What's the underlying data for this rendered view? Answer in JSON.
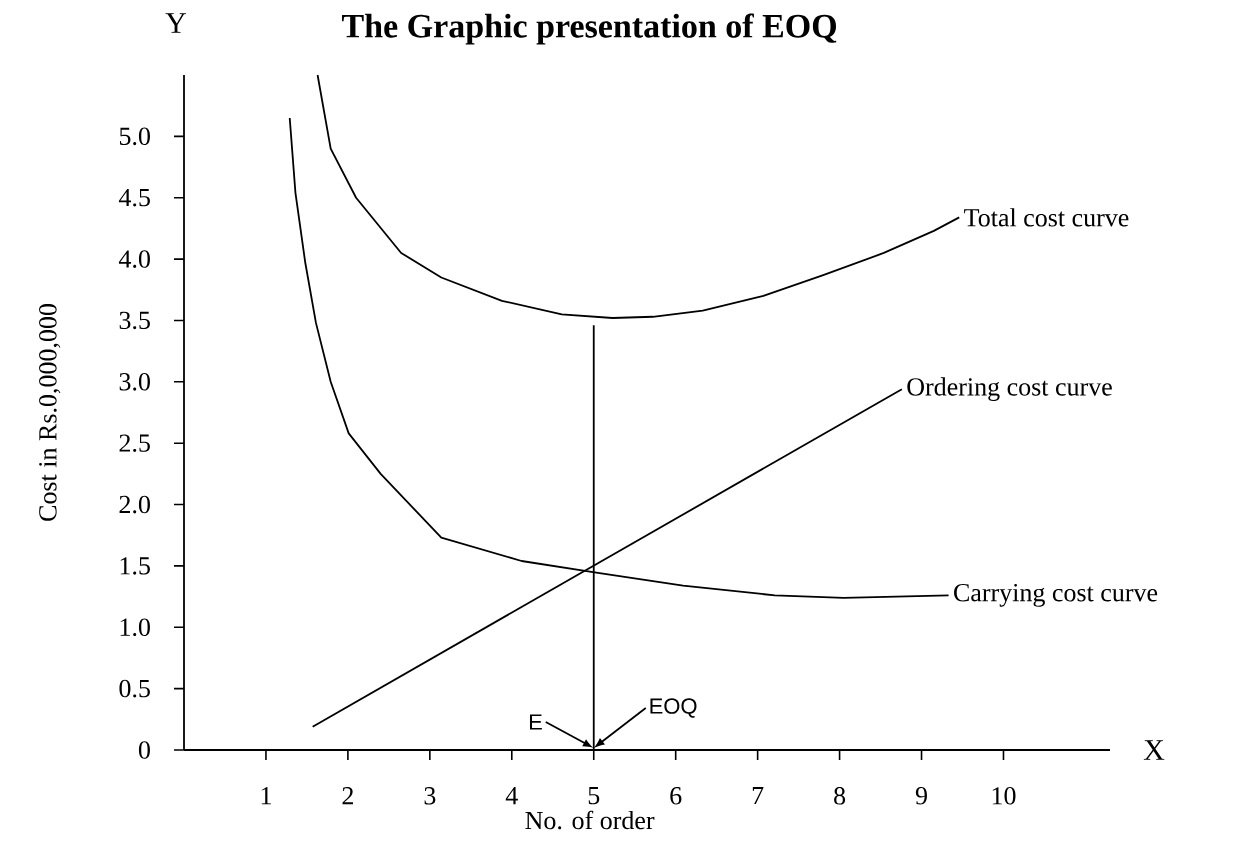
{
  "chart_data": {
    "type": "line",
    "title": "The Graphic presentation of EOQ",
    "xlabel": "No. of order",
    "ylabel": "Cost in Rs.0,000,000",
    "xlim": [
      0,
      11.3
    ],
    "ylim": [
      0,
      5.5
    ],
    "xticks": [
      1,
      2,
      3,
      4,
      5,
      6,
      7,
      8,
      9,
      10
    ],
    "yticks": [
      0,
      0.5,
      {
        "value": 1,
        "label": "1.0"
      },
      1.5,
      {
        "value": 2,
        "label": "2.0"
      },
      2.5,
      {
        "value": 3,
        "label": "3.0"
      },
      3.5,
      {
        "value": 4,
        "label": "4.0"
      },
      4.5,
      {
        "value": 5,
        "label": "5.0"
      }
    ],
    "series": [
      {
        "name": "Total cost curve",
        "color": "#000000",
        "x": [
          1.63,
          1.79,
          2.1,
          2.65,
          3.14,
          3.88,
          4.61,
          5.23,
          5.72,
          6.33,
          7.07,
          7.8,
          8.54,
          9.15,
          9.46
        ],
        "values": [
          5.5,
          4.9,
          4.5,
          4.05,
          3.85,
          3.66,
          3.55,
          3.52,
          3.53,
          3.58,
          3.7,
          3.87,
          4.05,
          4.23,
          4.34
        ]
      },
      {
        "name": "Ordering cost curve",
        "color": "#000000",
        "x": [
          1.57,
          8.76
        ],
        "values": [
          0.19,
          2.94
        ]
      },
      {
        "name": "Carrying cost curve",
        "color": "#000000",
        "x": [
          1.29,
          1.36,
          1.48,
          1.61,
          1.79,
          2.01,
          2.4,
          3.14,
          4.12,
          4.99,
          6.09,
          7.21,
          8.05,
          9.33
        ],
        "values": [
          5.15,
          4.54,
          3.97,
          3.48,
          3.0,
          2.58,
          2.25,
          1.73,
          1.54,
          1.45,
          1.34,
          1.26,
          1.24,
          1.26
        ]
      },
      {
        "color": "#000000",
        "x": [
          5,
          5
        ],
        "values": [
          0,
          3.46
        ]
      }
    ],
    "annotations": [
      {
        "text": "E",
        "x": 5,
        "y": 0
      },
      {
        "text": "EOQ",
        "x": 5,
        "y": 0
      },
      "Y",
      "X"
    ]
  }
}
